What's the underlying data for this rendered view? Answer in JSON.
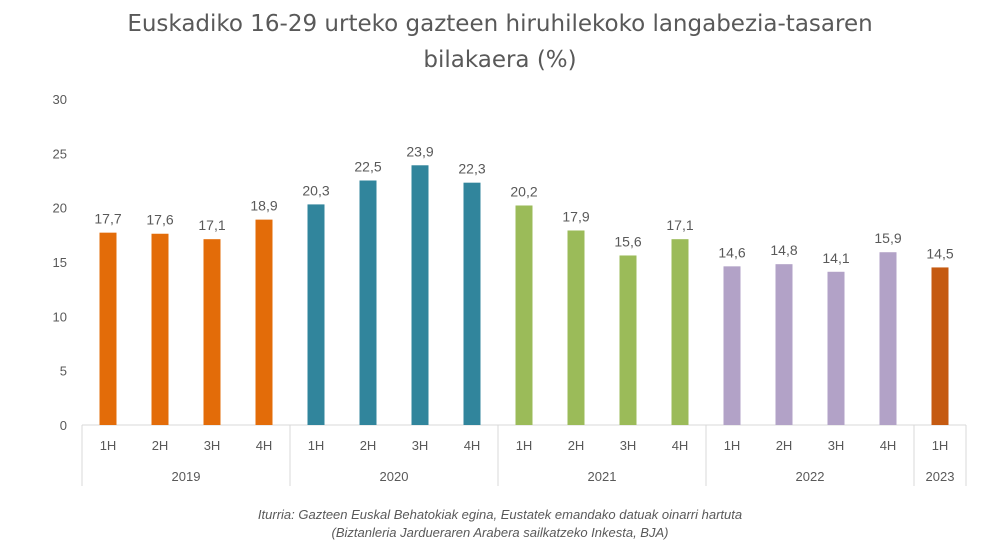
{
  "title_line1": "Euskadiko 16-29 urteko gazteen hiruhilekoko langabezia-tasaren",
  "title_line2": "bilakaera (%)",
  "source_line1": "Iturria: Gazteen Euskal Behatokiak egina, Eustatek emandako datuak oinarri hartuta",
  "source_line2": "(Biztanleria Jardueraren Arabera sailkatzeko Inkesta, BJA)",
  "chart_data": {
    "type": "bar",
    "title": "Euskadiko 16-29 urteko gazteen hiruhilekoko langabezia-tasaren bilakaera (%)",
    "ylim": [
      0,
      30
    ],
    "yticks": [
      0,
      5,
      10,
      15,
      20,
      25,
      30
    ],
    "grid": false,
    "legend": "none",
    "groups": [
      {
        "label": "2019",
        "color": "#E36C09",
        "categories": [
          "1H",
          "2H",
          "3H",
          "4H"
        ],
        "values": [
          17.7,
          17.6,
          17.1,
          18.9
        ],
        "labels": [
          "17,7",
          "17,6",
          "17,1",
          "18,9"
        ]
      },
      {
        "label": "2020",
        "color": "#31859C",
        "categories": [
          "1H",
          "2H",
          "3H",
          "4H"
        ],
        "values": [
          20.3,
          22.5,
          23.9,
          22.3
        ],
        "labels": [
          "20,3",
          "22,5",
          "23,9",
          "22,3"
        ]
      },
      {
        "label": "2021",
        "color": "#9BBB59",
        "categories": [
          "1H",
          "2H",
          "3H",
          "4H"
        ],
        "values": [
          20.2,
          17.9,
          15.6,
          17.1
        ],
        "labels": [
          "20,2",
          "17,9",
          "15,6",
          "17,1"
        ]
      },
      {
        "label": "2022",
        "color": "#B2A2C7",
        "categories": [
          "1H",
          "2H",
          "3H",
          "4H"
        ],
        "values": [
          14.6,
          14.8,
          14.1,
          15.9
        ],
        "labels": [
          "14,6",
          "14,8",
          "14,1",
          "15,9"
        ]
      },
      {
        "label": "2023",
        "color": "#C55A11",
        "categories": [
          "1H"
        ],
        "values": [
          14.5
        ],
        "labels": [
          "14,5"
        ]
      }
    ]
  }
}
